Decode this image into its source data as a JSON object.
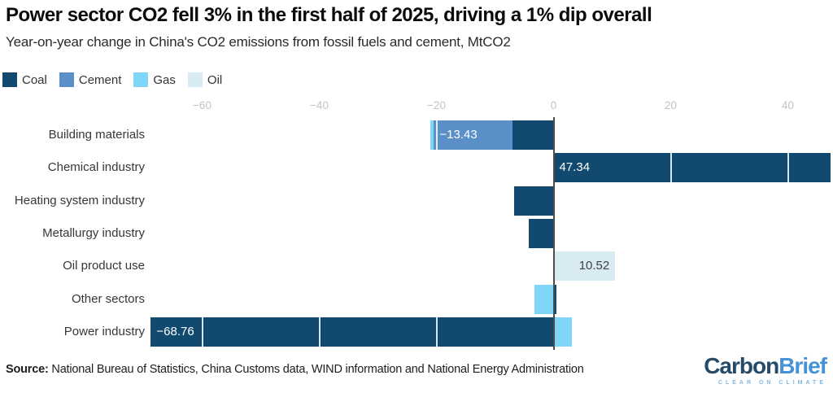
{
  "header": {
    "title": "Power sector CO2 fell 3% in the first half of 2025, driving a 1% dip overall",
    "subtitle": "Year-on-year change in China's CO2 emissions from fossil fuels and cement, MtCO2"
  },
  "legend": {
    "items": [
      {
        "label": "Coal",
        "color": "#12496f"
      },
      {
        "label": "Cement",
        "color": "#5a8fc7"
      },
      {
        "label": "Gas",
        "color": "#7ed5f7"
      },
      {
        "label": "Oil",
        "color": "#d8eaf2"
      }
    ]
  },
  "chart_data": {
    "type": "bar",
    "orientation": "horizontal-stacked",
    "unit": "MtCO2",
    "categories": [
      "Building materials",
      "Chemical industry",
      "Heating system industry",
      "Metallurgy industry",
      "Oil product use",
      "Other sectors",
      "Power industry"
    ],
    "series": [
      {
        "name": "Coal",
        "color": "#12496f",
        "values": [
          -7.0,
          47.34,
          -6.8,
          -4.2,
          0,
          0.5,
          -68.76
        ]
      },
      {
        "name": "Cement",
        "color": "#5a8fc7",
        "values": [
          -13.43,
          0,
          0,
          0,
          0,
          0,
          0
        ]
      },
      {
        "name": "Gas",
        "color": "#7ed5f7",
        "values": [
          -0.55,
          0,
          0,
          0,
          0,
          -3.3,
          3.1
        ]
      },
      {
        "name": "Oil",
        "color": "#d8eaf2",
        "values": [
          0,
          0,
          0,
          0,
          10.52,
          0,
          0
        ]
      }
    ],
    "value_labels": [
      {
        "category": "Building materials",
        "series": "Cement",
        "text": "−13.43",
        "color": "#ffffff",
        "placement": "start"
      },
      {
        "category": "Chemical industry",
        "series": "Coal",
        "text": "47.34",
        "color": "#ffffff",
        "placement": "start"
      },
      {
        "category": "Oil product use",
        "series": "Oil",
        "text": "10.52",
        "color": "#414141",
        "placement": "end"
      },
      {
        "category": "Power industry",
        "series": "Coal",
        "text": "−68.76",
        "color": "#ffffff",
        "placement": "start"
      }
    ],
    "x_ticks": [
      -60,
      -40,
      -20,
      0,
      20,
      40
    ],
    "x_tick_labels": [
      "−60",
      "−40",
      "−20",
      "0",
      "20",
      "40"
    ],
    "x_range": [
      -69.5,
      47.8
    ],
    "grid": "white-lines-over-bars",
    "legend_position": "top-left"
  },
  "footer": {
    "source_label": "Source:",
    "source_text": " National Bureau of Statistics, China Customs data, WIND information and National Energy Administration"
  },
  "logo": {
    "part1": "Carbon",
    "part2": "Brief",
    "part1_color": "#254b68",
    "part2_color": "#4593d6",
    "tagline": "CLEAR ON CLIMATE",
    "tagline_color": "#7fb8e0"
  }
}
